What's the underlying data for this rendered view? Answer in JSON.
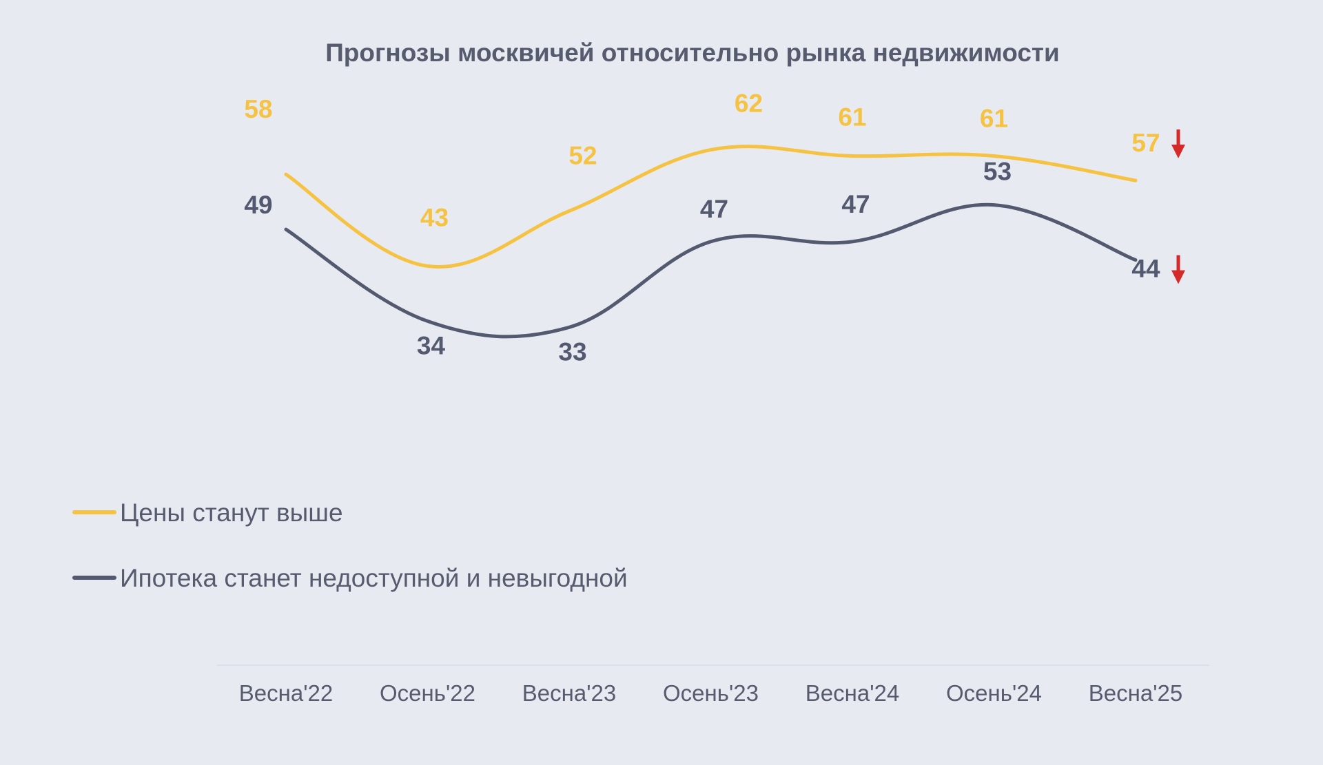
{
  "chart_data": {
    "type": "line",
    "title": "Прогнозы москвичей относительно рынка недвижимости",
    "categories": [
      "Весна'22",
      "Осень'22",
      "Весна'23",
      "Осень'23",
      "Весна'24",
      "Осень'24",
      "Весна'25"
    ],
    "series": [
      {
        "name": "Цены станут выше",
        "color": "#f5c242",
        "values": [
          58,
          43,
          52,
          62,
          61,
          61,
          57
        ],
        "labels": [
          "58",
          "43",
          "52",
          "62",
          "61",
          "61",
          "57"
        ],
        "last_point_marker": "down-arrow-icon"
      },
      {
        "name": "Ипотека станет недоступной и невыгодной",
        "color": "#535a6f",
        "values": [
          49,
          34,
          33,
          47,
          47,
          53,
          44
        ],
        "labels": [
          "49",
          "34",
          "33",
          "47",
          "47",
          "53",
          "44"
        ],
        "last_point_marker": "down-arrow-icon"
      }
    ],
    "arrow_color": "#d42a2a",
    "ylim": [
      25,
      70
    ],
    "grid": false,
    "legend_position": "left"
  }
}
